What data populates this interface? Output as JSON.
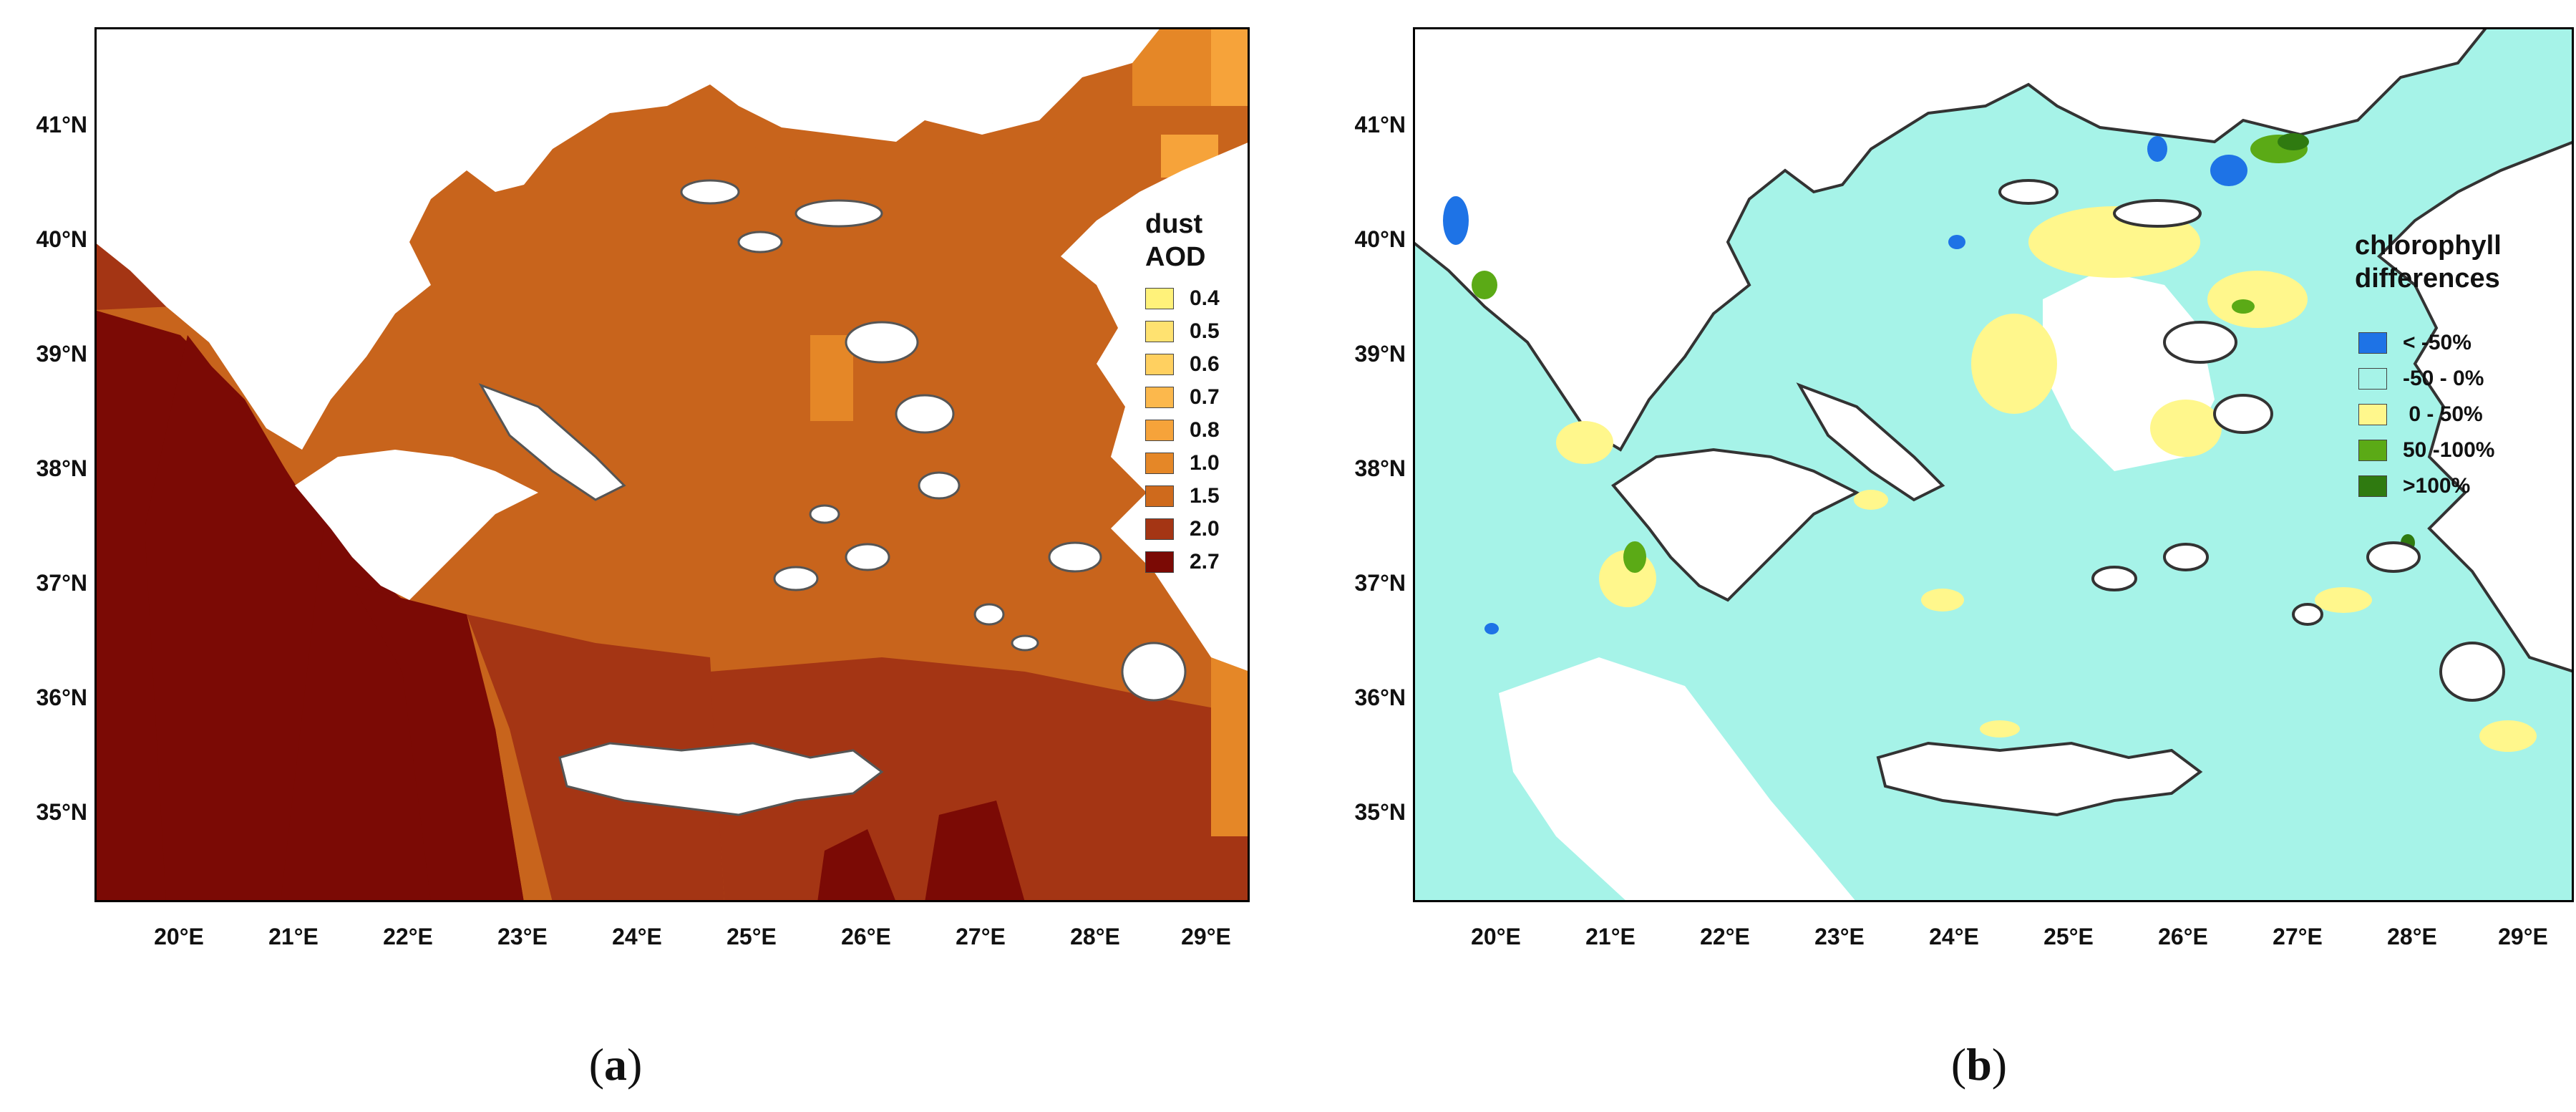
{
  "panels": [
    {
      "caption": "a",
      "legend": {
        "title_line1": "dust",
        "title_line2": "AOD",
        "items": [
          {
            "label": "0.4",
            "color": "#FFF27A"
          },
          {
            "label": "0.5",
            "color": "#FFE270"
          },
          {
            "label": "0.6",
            "color": "#FFD060"
          },
          {
            "label": "0.7",
            "color": "#FCB84C"
          },
          {
            "label": "0.8",
            "color": "#F6A33A"
          },
          {
            "label": "1.0",
            "color": "#E58727"
          },
          {
            "label": "1.5",
            "color": "#CF6A1C"
          },
          {
            "label": "2.0",
            "color": "#A43514"
          },
          {
            "label": "2.7",
            "color": "#7B0A05"
          }
        ]
      }
    },
    {
      "caption": "b",
      "legend": {
        "title_line1": "chlorophyll",
        "title_line2": "differences",
        "items": [
          {
            "label": "< -50%",
            "color": "#1E73E6"
          },
          {
            "label": "-50 - 0%",
            "color": "#A6F3E8"
          },
          {
            "label": " 0 - 50%",
            "color": "#FFF78C"
          },
          {
            "label": "50 -100%",
            "color": "#5BAA16"
          },
          {
            "label": ">100%",
            "color": "#2F7A10"
          }
        ]
      }
    }
  ],
  "axes": {
    "lat_labels": [
      "41°N",
      "40°N",
      "39°N",
      "38°N",
      "37°N",
      "36°N",
      "35°N"
    ],
    "lon_labels": [
      "20°E",
      "21°E",
      "22°E",
      "23°E",
      "24°E",
      "25°E",
      "26°E",
      "27°E",
      "28°E",
      "29°E"
    ]
  }
}
